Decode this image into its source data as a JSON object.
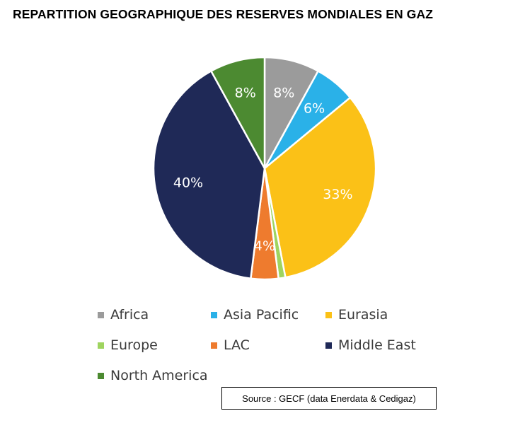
{
  "chart_data": {
    "type": "pie",
    "title": "REPARTITION GEOGRAPHIQUE DES RESERVES MONDIALES EN GAZ",
    "slices": [
      {
        "name": "Africa",
        "value": 8,
        "label": "8%",
        "color": "#9b9b9b"
      },
      {
        "name": "Asia Pacific",
        "value": 6,
        "label": "6%",
        "color": "#2ab1e8"
      },
      {
        "name": "Eurasia",
        "value": 33,
        "label": "33%",
        "color": "#fbc117"
      },
      {
        "name": "Europe",
        "value": 1,
        "label": "",
        "color": "#9fd45f"
      },
      {
        "name": "LAC",
        "value": 4,
        "label": "4%",
        "color": "#ee7b2e"
      },
      {
        "name": "Middle East",
        "value": 40,
        "label": "40%",
        "color": "#1f2957"
      },
      {
        "name": "North America",
        "value": 8,
        "label": "8%",
        "color": "#4c8a31"
      }
    ],
    "legend_position": "bottom"
  },
  "source": "Source : GECF (data Enerdata & Cedigaz)"
}
